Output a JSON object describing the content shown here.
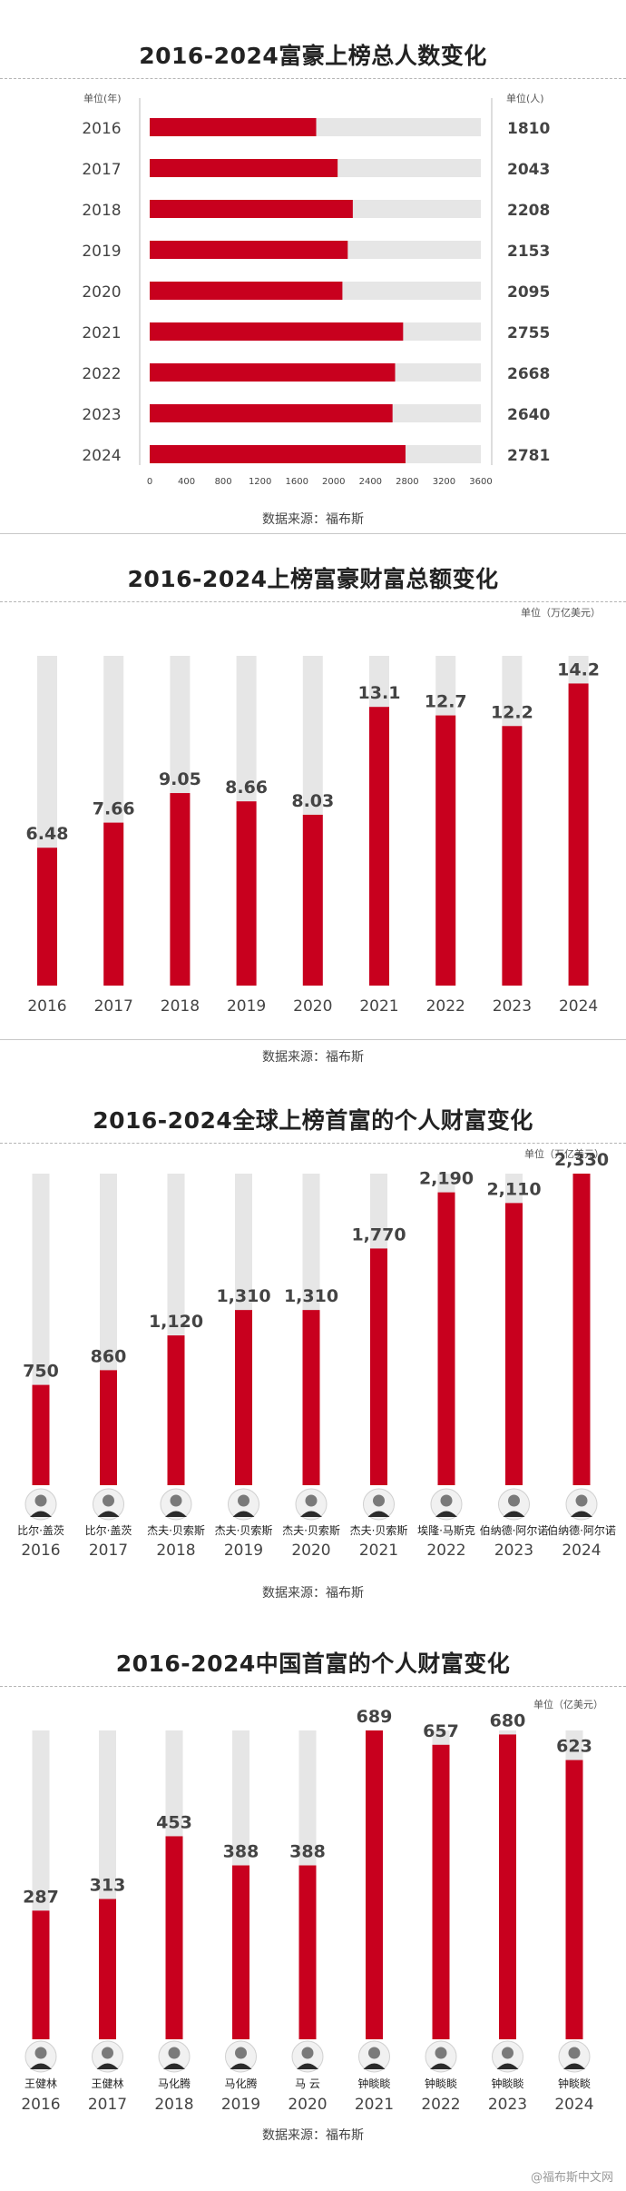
{
  "chart_data": [
    {
      "type": "bar",
      "orientation": "horizontal",
      "title": "2016-2024富豪上榜总人数变化",
      "unit_left": "单位(年)",
      "unit_right": "单位(人)",
      "categories": [
        "2016",
        "2017",
        "2018",
        "2019",
        "2020",
        "2021",
        "2022",
        "2023",
        "2024"
      ],
      "values": [
        1810,
        2043,
        2208,
        2153,
        2095,
        2755,
        2668,
        2640,
        2781
      ],
      "value_labels": [
        "1810",
        "2043",
        "2208",
        "2153",
        "2095",
        "2755",
        "2668",
        "2640",
        "2781"
      ],
      "xlim": [
        0,
        3600
      ],
      "xticks": [
        "0",
        "400",
        "800",
        "1200",
        "1600",
        "2000",
        "2400",
        "2800",
        "3200",
        "3600"
      ],
      "source": "数据来源：福布斯",
      "colors": {
        "bar": "#c8001e",
        "track": "#e6e6e6"
      }
    },
    {
      "type": "bar",
      "title": "2016-2024上榜富豪财富总额变化",
      "unit": "单位（万亿美元）",
      "categories": [
        "2016",
        "2017",
        "2018",
        "2019",
        "2020",
        "2021",
        "2022",
        "2023",
        "2024"
      ],
      "values": [
        6.48,
        7.66,
        9.05,
        8.66,
        8.03,
        13.1,
        12.7,
        12.2,
        14.2
      ],
      "value_labels": [
        "6.48",
        "7.66",
        "9.05",
        "8.66",
        "8.03",
        "13.1",
        "12.7",
        "12.2",
        "14.2"
      ],
      "ylim": [
        0,
        15.5
      ],
      "source": "数据来源：福布斯",
      "colors": {
        "bar": "#c8001e",
        "track": "#e6e6e6"
      }
    },
    {
      "type": "bar",
      "title": "2016-2024全球上榜首富的个人财富变化",
      "unit": "单位（万亿美元）",
      "categories": [
        "2016",
        "2017",
        "2018",
        "2019",
        "2020",
        "2021",
        "2022",
        "2023",
        "2024"
      ],
      "values": [
        750,
        860,
        1120,
        1310,
        1310,
        1770,
        2190,
        2110,
        2330
      ],
      "value_labels": [
        "750",
        "860",
        "1,120",
        "1,310",
        "1,310",
        "1,770",
        "2,190",
        "2,110",
        "2,330"
      ],
      "names": [
        "比尔·盖茨",
        "比尔·盖茨",
        "杰夫·贝索斯",
        "杰夫·贝索斯",
        "杰夫·贝索斯",
        "杰夫·贝索斯",
        "埃隆·马斯克",
        "伯纳德·阿尔诺",
        "伯纳德·阿尔诺"
      ],
      "ylim": [
        0,
        2330
      ],
      "source": "数据来源：福布斯",
      "colors": {
        "bar": "#c8001e",
        "track": "#e6e6e6"
      }
    },
    {
      "type": "bar",
      "title": "2016-2024中国首富的个人财富变化",
      "unit": "单位（亿美元）",
      "categories": [
        "2016",
        "2017",
        "2018",
        "2019",
        "2020",
        "2021",
        "2022",
        "2023",
        "2024"
      ],
      "values": [
        287,
        313,
        453,
        388,
        388,
        689,
        657,
        680,
        623
      ],
      "value_labels": [
        "287",
        "313",
        "453",
        "388",
        "388",
        "689",
        "657",
        "680",
        "623"
      ],
      "names": [
        "王健林",
        "王健林",
        "马化腾",
        "马化腾",
        "马 云",
        "钟睒睒",
        "钟睒睒",
        "钟睒睒",
        "钟睒睒"
      ],
      "ylim": [
        0,
        689
      ],
      "source": "数据来源：福布斯",
      "colors": {
        "bar": "#c8001e",
        "track": "#e6e6e6"
      }
    }
  ],
  "watermark": "@福布斯中文网"
}
